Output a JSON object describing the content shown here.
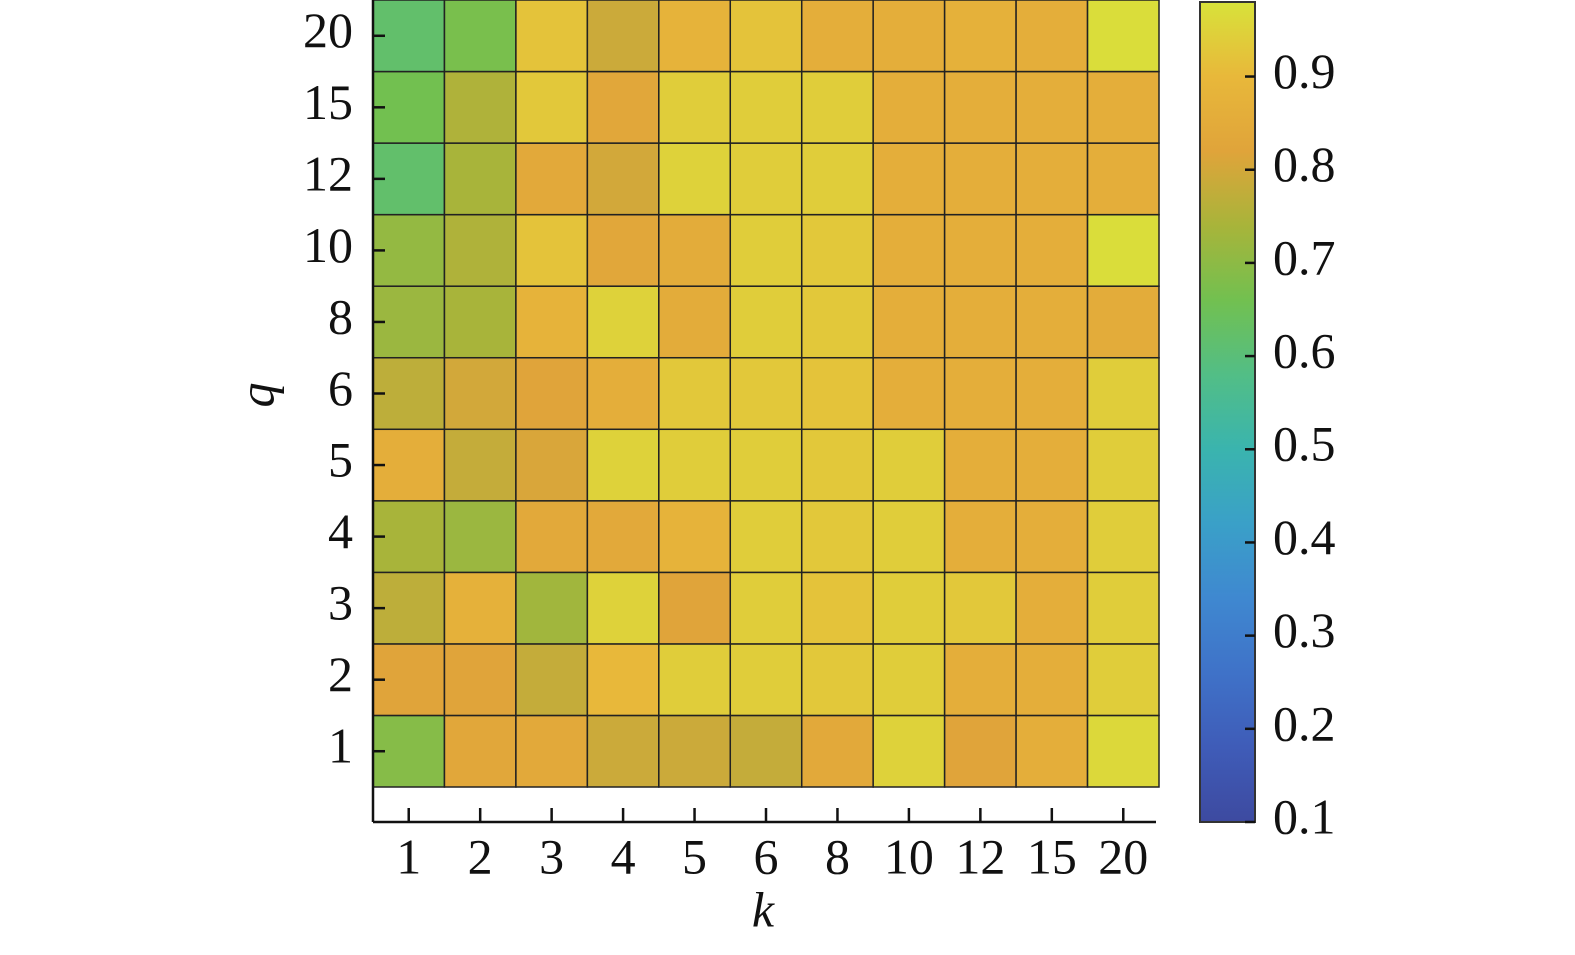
{
  "chart_data": {
    "type": "heatmap",
    "xlabel": "k",
    "ylabel": "q",
    "xcategories": [
      "1",
      "2",
      "3",
      "4",
      "5",
      "6",
      "8",
      "10",
      "12",
      "15",
      "20"
    ],
    "ycategories": [
      "1",
      "2",
      "3",
      "4",
      "5",
      "6",
      "8",
      "10",
      "12",
      "15",
      "20"
    ],
    "z": [
      [
        0.69,
        0.83,
        0.84,
        0.79,
        0.79,
        0.78,
        0.84,
        0.95,
        0.82,
        0.86,
        0.96
      ],
      [
        0.82,
        0.82,
        0.78,
        0.9,
        0.94,
        0.94,
        0.93,
        0.94,
        0.86,
        0.86,
        0.94
      ],
      [
        0.77,
        0.87,
        0.73,
        0.95,
        0.82,
        0.94,
        0.92,
        0.94,
        0.93,
        0.86,
        0.94
      ],
      [
        0.74,
        0.72,
        0.84,
        0.84,
        0.88,
        0.94,
        0.93,
        0.94,
        0.86,
        0.86,
        0.94
      ],
      [
        0.86,
        0.78,
        0.81,
        0.95,
        0.94,
        0.94,
        0.93,
        0.94,
        0.86,
        0.86,
        0.94
      ],
      [
        0.77,
        0.8,
        0.82,
        0.86,
        0.93,
        0.93,
        0.92,
        0.86,
        0.86,
        0.86,
        0.94
      ],
      [
        0.72,
        0.74,
        0.88,
        0.95,
        0.85,
        0.94,
        0.93,
        0.86,
        0.86,
        0.86,
        0.85
      ],
      [
        0.71,
        0.75,
        0.92,
        0.83,
        0.85,
        0.94,
        0.93,
        0.86,
        0.86,
        0.86,
        0.97
      ],
      [
        0.62,
        0.74,
        0.84,
        0.8,
        0.95,
        0.94,
        0.94,
        0.86,
        0.86,
        0.86,
        0.86
      ],
      [
        0.66,
        0.75,
        0.93,
        0.83,
        0.94,
        0.94,
        0.94,
        0.86,
        0.86,
        0.86,
        0.86
      ],
      [
        0.62,
        0.67,
        0.92,
        0.79,
        0.88,
        0.92,
        0.86,
        0.86,
        0.87,
        0.86,
        0.97
      ]
    ],
    "colormap": [
      "#3d4aa0",
      "#3f5cb8",
      "#3f72c8",
      "#3f88d0",
      "#3aa0c8",
      "#3ab4ae",
      "#52be86",
      "#72c050",
      "#a8b43a",
      "#e0a43a",
      "#e8b83a",
      "#d8e23a"
    ],
    "clim": [
      0.1,
      0.98
    ],
    "cticks": [
      0.1,
      0.2,
      0.3,
      0.4,
      0.5,
      0.6,
      0.7,
      0.8,
      0.9
    ]
  }
}
